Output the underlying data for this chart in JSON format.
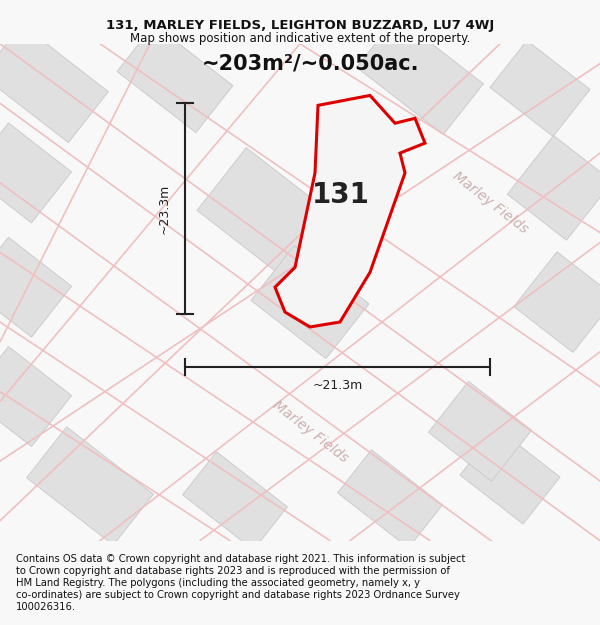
{
  "title_line1": "131, MARLEY FIELDS, LEIGHTON BUZZARD, LU7 4WJ",
  "title_line2": "Map shows position and indicative extent of the property.",
  "area_text": "~203m²/~0.050ac.",
  "label_131": "131",
  "dim_height": "~23.3m",
  "dim_width": "~21.3m",
  "street_label1": "Marley Fields",
  "street_label2": "Marley Fields",
  "footer_lines": [
    "Contains OS data © Crown copyright and database right 2021. This information is subject",
    "to Crown copyright and database rights 2023 and is reproduced with the permission of",
    "HM Land Registry. The polygons (including the associated geometry, namely x, y",
    "co-ordinates) are subject to Crown copyright and database rights 2023 Ordnance Survey",
    "100026316."
  ],
  "bg_color": "#f8f8f8",
  "map_bg": "#f8f8f8",
  "plot_fill": "#f0f0f0",
  "plot_stroke": "#dd0000",
  "block_fill": "#e0e0e0",
  "block_edge": "#cccccc",
  "road_pink": "#f0c0c0",
  "road_gray": "#d8d8d8",
  "street_color": "#ccb0b0",
  "dim_color": "#222222",
  "title_fontsize": 9.5,
  "subtitle_fontsize": 8.5,
  "area_fontsize": 15,
  "label_fontsize": 20,
  "dim_fontsize": 9,
  "street_fontsize": 10,
  "footer_fontsize": 7.2
}
